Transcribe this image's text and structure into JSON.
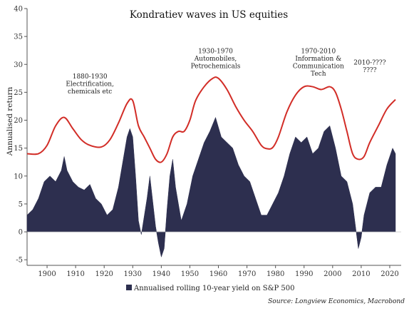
{
  "chart_data": {
    "type": "area",
    "title": "Kondratiev waves in US equities",
    "xlabel": "",
    "ylabel": "Annualised return",
    "xlim": [
      1893,
      2024
    ],
    "ylim": [
      -6,
      40
    ],
    "x_ticks": [
      1900,
      1910,
      1920,
      1930,
      1940,
      1950,
      1960,
      1970,
      1980,
      1990,
      2000,
      2010,
      2020
    ],
    "y_ticks": [
      -5,
      0,
      5,
      10,
      15,
      20,
      25,
      30,
      35,
      40
    ],
    "grid": false,
    "legend": {
      "placement": "bottom-center",
      "entries": [
        "Annualised rolling 10-year yield on S&P 500"
      ]
    },
    "source": "Source: Longview Economics, Macrobond",
    "annotations": [
      {
        "lines": [
          "1880-1930",
          "Electrification,",
          "chemicals etc"
        ],
        "x": 1915,
        "y": 27.5
      },
      {
        "lines": [
          "1930-1970",
          "Automobiles,",
          "Petrochemicals"
        ],
        "x": 1959,
        "y": 32
      },
      {
        "lines": [
          "1970-2010",
          "Information &",
          "Communication",
          "Tech"
        ],
        "x": 1995,
        "y": 32
      },
      {
        "lines": [
          "2010-????",
          "????"
        ],
        "x": 2013,
        "y": 30
      }
    ],
    "series": [
      {
        "name": "Annualised rolling 10-year yield on S&P 500",
        "type": "area",
        "color": "#2d2f4f",
        "points": [
          [
            1893,
            3
          ],
          [
            1895,
            4
          ],
          [
            1897,
            6
          ],
          [
            1899,
            9
          ],
          [
            1901,
            10
          ],
          [
            1903,
            9
          ],
          [
            1905,
            11
          ],
          [
            1906,
            13.5
          ],
          [
            1907,
            11
          ],
          [
            1909,
            9
          ],
          [
            1911,
            8
          ],
          [
            1913,
            7.5
          ],
          [
            1915,
            8.5
          ],
          [
            1917,
            6
          ],
          [
            1919,
            5
          ],
          [
            1921,
            3
          ],
          [
            1923,
            4
          ],
          [
            1925,
            8
          ],
          [
            1927,
            14
          ],
          [
            1928,
            17
          ],
          [
            1929,
            18.5
          ],
          [
            1930,
            17
          ],
          [
            1931,
            10
          ],
          [
            1932,
            2
          ],
          [
            1933,
            -0.5
          ],
          [
            1935,
            6
          ],
          [
            1936,
            10
          ],
          [
            1938,
            1
          ],
          [
            1939,
            -2
          ],
          [
            1940,
            -4.5
          ],
          [
            1941,
            -3
          ],
          [
            1942,
            4
          ],
          [
            1943,
            10
          ],
          [
            1944,
            13
          ],
          [
            1945,
            8
          ],
          [
            1947,
            2
          ],
          [
            1949,
            5
          ],
          [
            1951,
            10
          ],
          [
            1953,
            13
          ],
          [
            1955,
            16
          ],
          [
            1957,
            18
          ],
          [
            1959,
            20.5
          ],
          [
            1961,
            17
          ],
          [
            1963,
            16
          ],
          [
            1965,
            15
          ],
          [
            1967,
            12
          ],
          [
            1969,
            10
          ],
          [
            1971,
            9
          ],
          [
            1973,
            6
          ],
          [
            1975,
            3
          ],
          [
            1977,
            3
          ],
          [
            1979,
            5
          ],
          [
            1981,
            7
          ],
          [
            1983,
            10
          ],
          [
            1985,
            14
          ],
          [
            1987,
            17
          ],
          [
            1989,
            16
          ],
          [
            1991,
            17
          ],
          [
            1993,
            14
          ],
          [
            1995,
            15
          ],
          [
            1997,
            18
          ],
          [
            1999,
            19
          ],
          [
            2001,
            15
          ],
          [
            2003,
            10
          ],
          [
            2005,
            9
          ],
          [
            2007,
            5
          ],
          [
            2009,
            -3
          ],
          [
            2010,
            -1
          ],
          [
            2011,
            3
          ],
          [
            2013,
            7
          ],
          [
            2015,
            8
          ],
          [
            2017,
            8
          ],
          [
            2019,
            12
          ],
          [
            2021,
            15
          ],
          [
            2022,
            14
          ]
        ]
      },
      {
        "name": "",
        "type": "line",
        "color": "#d22d27",
        "points": [
          [
            1893,
            14
          ],
          [
            1897,
            14
          ],
          [
            1900,
            15.5
          ],
          [
            1903,
            19
          ],
          [
            1906,
            20.5
          ],
          [
            1909,
            18.5
          ],
          [
            1912,
            16.5
          ],
          [
            1915,
            15.5
          ],
          [
            1919,
            15.2
          ],
          [
            1922,
            16.5
          ],
          [
            1925,
            19.5
          ],
          [
            1928,
            23
          ],
          [
            1930,
            23.5
          ],
          [
            1932,
            19
          ],
          [
            1934,
            17
          ],
          [
            1936,
            15
          ],
          [
            1938,
            13
          ],
          [
            1940,
            12.5
          ],
          [
            1942,
            14
          ],
          [
            1944,
            17
          ],
          [
            1946,
            18
          ],
          [
            1948,
            18
          ],
          [
            1950,
            20
          ],
          [
            1952,
            23.5
          ],
          [
            1955,
            26
          ],
          [
            1958,
            27.5
          ],
          [
            1960,
            27.5
          ],
          [
            1963,
            25.5
          ],
          [
            1966,
            22.5
          ],
          [
            1969,
            20
          ],
          [
            1972,
            18
          ],
          [
            1975,
            15.5
          ],
          [
            1977,
            14.9
          ],
          [
            1979,
            15.1
          ],
          [
            1981,
            17
          ],
          [
            1984,
            21.5
          ],
          [
            1987,
            24.5
          ],
          [
            1990,
            26
          ],
          [
            1993,
            26
          ],
          [
            1996,
            25.5
          ],
          [
            1999,
            26
          ],
          [
            2001,
            25
          ],
          [
            2003,
            22
          ],
          [
            2005,
            18
          ],
          [
            2007,
            14
          ],
          [
            2009,
            13
          ],
          [
            2011,
            13.5
          ],
          [
            2013,
            16
          ],
          [
            2016,
            19
          ],
          [
            2019,
            22
          ],
          [
            2022,
            23.7
          ]
        ]
      }
    ]
  }
}
